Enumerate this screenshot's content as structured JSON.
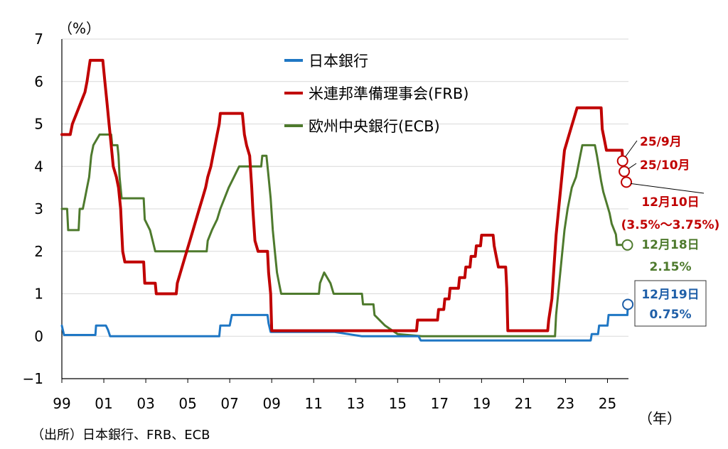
{
  "chart_data": {
    "type": "line",
    "ylabel": "（%）",
    "xlabel": "（年）",
    "source": "（出所）日本銀行、FRB、ECB",
    "ylim": [
      -1,
      7
    ],
    "y_ticks": [
      "−1",
      "0",
      "1",
      "2",
      "3",
      "4",
      "5",
      "6",
      "7"
    ],
    "x_ticks": [
      "99",
      "01",
      "03",
      "05",
      "07",
      "09",
      "11",
      "13",
      "15",
      "17",
      "19",
      "21",
      "23",
      "25"
    ],
    "grid": "horizontal",
    "legend_position": "top-center",
    "series": [
      {
        "name": "日本銀行",
        "color": "#1f77c4",
        "points": [
          [
            1999.0,
            0.25
          ],
          [
            1999.1,
            0.03
          ],
          [
            2000.6,
            0.03
          ],
          [
            2000.63,
            0.25
          ],
          [
            2001.1,
            0.25
          ],
          [
            2001.2,
            0.15
          ],
          [
            2001.3,
            0.0
          ],
          [
            2006.5,
            0.0
          ],
          [
            2006.55,
            0.25
          ],
          [
            2007.0,
            0.25
          ],
          [
            2007.1,
            0.5
          ],
          [
            2008.8,
            0.5
          ],
          [
            2008.85,
            0.3
          ],
          [
            2008.95,
            0.1
          ],
          [
            2012.0,
            0.1
          ],
          [
            2013.3,
            0.0
          ],
          [
            2016.0,
            0.0
          ],
          [
            2016.1,
            -0.1
          ],
          [
            2024.2,
            -0.1
          ],
          [
            2024.25,
            0.05
          ],
          [
            2024.55,
            0.05
          ],
          [
            2024.6,
            0.25
          ],
          [
            2025.0,
            0.25
          ],
          [
            2025.05,
            0.5
          ],
          [
            2025.95,
            0.5
          ],
          [
            2025.97,
            0.75
          ]
        ]
      },
      {
        "name": "米連邦準備理事会(FRB)",
        "color": "#c00000",
        "points": [
          [
            1999.0,
            4.75
          ],
          [
            1999.4,
            4.75
          ],
          [
            1999.5,
            5.0
          ],
          [
            1999.7,
            5.25
          ],
          [
            1999.9,
            5.5
          ],
          [
            2000.1,
            5.75
          ],
          [
            2000.2,
            6.0
          ],
          [
            2000.35,
            6.5
          ],
          [
            2000.95,
            6.5
          ],
          [
            2001.05,
            6.0
          ],
          [
            2001.15,
            5.5
          ],
          [
            2001.25,
            5.0
          ],
          [
            2001.35,
            4.5
          ],
          [
            2001.45,
            4.0
          ],
          [
            2001.6,
            3.75
          ],
          [
            2001.7,
            3.5
          ],
          [
            2001.8,
            3.0
          ],
          [
            2001.85,
            2.5
          ],
          [
            2001.9,
            2.0
          ],
          [
            2002.0,
            1.75
          ],
          [
            2002.9,
            1.75
          ],
          [
            2002.95,
            1.25
          ],
          [
            2003.45,
            1.25
          ],
          [
            2003.5,
            1.0
          ],
          [
            2004.45,
            1.0
          ],
          [
            2004.5,
            1.25
          ],
          [
            2004.65,
            1.5
          ],
          [
            2004.8,
            1.75
          ],
          [
            2004.95,
            2.0
          ],
          [
            2005.1,
            2.25
          ],
          [
            2005.25,
            2.5
          ],
          [
            2005.4,
            2.75
          ],
          [
            2005.55,
            3.0
          ],
          [
            2005.7,
            3.25
          ],
          [
            2005.85,
            3.5
          ],
          [
            2005.95,
            3.75
          ],
          [
            2006.1,
            4.0
          ],
          [
            2006.2,
            4.25
          ],
          [
            2006.3,
            4.5
          ],
          [
            2006.4,
            4.75
          ],
          [
            2006.5,
            5.0
          ],
          [
            2006.55,
            5.25
          ],
          [
            2007.6,
            5.25
          ],
          [
            2007.7,
            4.75
          ],
          [
            2007.8,
            4.5
          ],
          [
            2007.95,
            4.25
          ],
          [
            2008.05,
            3.5
          ],
          [
            2008.1,
            3.0
          ],
          [
            2008.2,
            2.25
          ],
          [
            2008.35,
            2.0
          ],
          [
            2008.8,
            2.0
          ],
          [
            2008.85,
            1.5
          ],
          [
            2008.95,
            1.0
          ],
          [
            2009.0,
            0.13
          ],
          [
            2015.9,
            0.13
          ],
          [
            2015.95,
            0.38
          ],
          [
            2016.9,
            0.38
          ],
          [
            2016.95,
            0.63
          ],
          [
            2017.2,
            0.63
          ],
          [
            2017.25,
            0.88
          ],
          [
            2017.45,
            0.88
          ],
          [
            2017.5,
            1.13
          ],
          [
            2017.9,
            1.13
          ],
          [
            2017.95,
            1.38
          ],
          [
            2018.2,
            1.38
          ],
          [
            2018.25,
            1.63
          ],
          [
            2018.45,
            1.63
          ],
          [
            2018.5,
            1.88
          ],
          [
            2018.7,
            1.88
          ],
          [
            2018.75,
            2.13
          ],
          [
            2018.95,
            2.13
          ],
          [
            2019.0,
            2.38
          ],
          [
            2019.55,
            2.38
          ],
          [
            2019.6,
            2.13
          ],
          [
            2019.7,
            1.88
          ],
          [
            2019.8,
            1.63
          ],
          [
            2020.15,
            1.63
          ],
          [
            2020.2,
            1.13
          ],
          [
            2020.25,
            0.13
          ],
          [
            2022.15,
            0.13
          ],
          [
            2022.2,
            0.38
          ],
          [
            2022.35,
            0.88
          ],
          [
            2022.45,
            1.63
          ],
          [
            2022.55,
            2.38
          ],
          [
            2022.7,
            3.13
          ],
          [
            2022.85,
            3.88
          ],
          [
            2022.95,
            4.38
          ],
          [
            2023.1,
            4.63
          ],
          [
            2023.25,
            4.88
          ],
          [
            2023.4,
            5.13
          ],
          [
            2023.55,
            5.38
          ],
          [
            2024.7,
            5.38
          ],
          [
            2024.75,
            4.88
          ],
          [
            2024.85,
            4.63
          ],
          [
            2024.95,
            4.38
          ],
          [
            2025.7,
            4.38
          ],
          [
            2025.72,
            4.13
          ],
          [
            2025.8,
            3.88
          ],
          [
            2025.9,
            3.63
          ]
        ]
      },
      {
        "name": "欧州中央銀行(ECB)",
        "color": "#4e7a2d",
        "points": [
          [
            1999.0,
            3.0
          ],
          [
            1999.25,
            3.0
          ],
          [
            1999.3,
            2.5
          ],
          [
            1999.8,
            2.5
          ],
          [
            1999.85,
            3.0
          ],
          [
            2000.0,
            3.0
          ],
          [
            2000.1,
            3.25
          ],
          [
            2000.2,
            3.5
          ],
          [
            2000.3,
            3.75
          ],
          [
            2000.4,
            4.25
          ],
          [
            2000.5,
            4.5
          ],
          [
            2000.8,
            4.75
          ],
          [
            2001.35,
            4.75
          ],
          [
            2001.4,
            4.5
          ],
          [
            2001.65,
            4.5
          ],
          [
            2001.7,
            4.25
          ],
          [
            2001.75,
            3.75
          ],
          [
            2001.85,
            3.25
          ],
          [
            2002.9,
            3.25
          ],
          [
            2002.95,
            2.75
          ],
          [
            2003.2,
            2.5
          ],
          [
            2003.45,
            2.0
          ],
          [
            2005.9,
            2.0
          ],
          [
            2005.95,
            2.25
          ],
          [
            2006.15,
            2.5
          ],
          [
            2006.4,
            2.75
          ],
          [
            2006.55,
            3.0
          ],
          [
            2006.75,
            3.25
          ],
          [
            2006.95,
            3.5
          ],
          [
            2007.2,
            3.75
          ],
          [
            2007.45,
            4.0
          ],
          [
            2008.5,
            4.0
          ],
          [
            2008.55,
            4.25
          ],
          [
            2008.75,
            4.25
          ],
          [
            2008.85,
            3.75
          ],
          [
            2008.95,
            3.25
          ],
          [
            2009.05,
            2.5
          ],
          [
            2009.15,
            2.0
          ],
          [
            2009.25,
            1.5
          ],
          [
            2009.35,
            1.25
          ],
          [
            2009.45,
            1.0
          ],
          [
            2011.25,
            1.0
          ],
          [
            2011.3,
            1.25
          ],
          [
            2011.5,
            1.5
          ],
          [
            2011.8,
            1.25
          ],
          [
            2011.95,
            1.0
          ],
          [
            2013.3,
            1.0
          ],
          [
            2013.35,
            0.75
          ],
          [
            2013.85,
            0.75
          ],
          [
            2013.9,
            0.5
          ],
          [
            2014.4,
            0.25
          ],
          [
            2014.7,
            0.15
          ],
          [
            2015.0,
            0.05
          ],
          [
            2016.15,
            0.0
          ],
          [
            2022.5,
            0.0
          ],
          [
            2022.55,
            0.5
          ],
          [
            2022.7,
            1.25
          ],
          [
            2022.85,
            2.0
          ],
          [
            2022.95,
            2.5
          ],
          [
            2023.1,
            3.0
          ],
          [
            2023.3,
            3.5
          ],
          [
            2023.5,
            3.75
          ],
          [
            2023.6,
            4.0
          ],
          [
            2023.7,
            4.25
          ],
          [
            2023.8,
            4.5
          ],
          [
            2024.4,
            4.5
          ],
          [
            2024.5,
            4.25
          ],
          [
            2024.7,
            3.65
          ],
          [
            2024.8,
            3.4
          ],
          [
            2024.95,
            3.15
          ],
          [
            2025.1,
            2.9
          ],
          [
            2025.2,
            2.65
          ],
          [
            2025.4,
            2.4
          ],
          [
            2025.45,
            2.15
          ],
          [
            2025.95,
            2.15
          ]
        ]
      }
    ],
    "annotations": [
      {
        "label": "25/9月",
        "color": "#c00000",
        "marker_x": 2025.72,
        "marker_y": 4.13
      },
      {
        "label": "25/10月",
        "color": "#c00000",
        "marker_x": 2025.8,
        "marker_y": 3.88
      },
      {
        "label": "12月10日",
        "sub": "(3.5%〜3.75%)",
        "color": "#c00000",
        "marker_x": 2025.9,
        "marker_y": 3.63
      },
      {
        "label": "12月18日",
        "sub": "2.15%",
        "color": "#4e7a2d",
        "marker_x": 2025.95,
        "marker_y": 2.15
      },
      {
        "label": "12月19日",
        "sub": "0.75%",
        "color": "#1f5fa8",
        "marker_x": 2025.97,
        "marker_y": 0.75
      }
    ]
  }
}
